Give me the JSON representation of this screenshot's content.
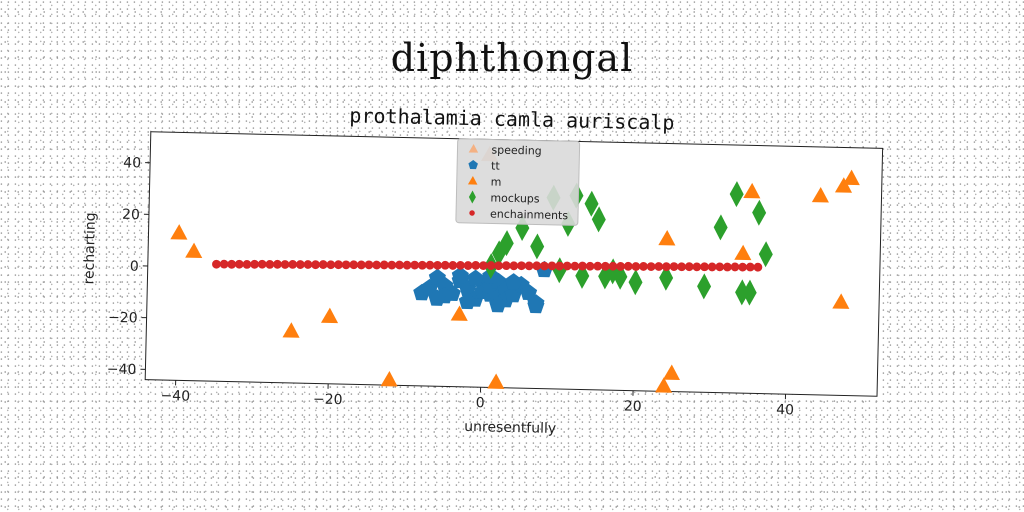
{
  "page_title": "diphthongal",
  "colors": {
    "speeding": "#f4b183",
    "tt": "#1f77b4",
    "m": "#ff7f0e",
    "mockups": "#2ca02c",
    "enchainments": "#d62728"
  },
  "chart_data": {
    "type": "scatter",
    "title": "prothalamia camla auriscalp",
    "xlabel": "unresentfully",
    "ylabel": "recharting",
    "xlim": [
      -44,
      52
    ],
    "ylim": [
      -44,
      52
    ],
    "xticks": [
      -40,
      -20,
      0,
      20,
      40
    ],
    "yticks": [
      -40,
      -20,
      0,
      20,
      40
    ],
    "grid": false,
    "legend_position": "upper-center",
    "series": [
      {
        "name": "speeding",
        "marker": "triangle",
        "points": [
          [
            0.5,
            46
          ]
        ]
      },
      {
        "name": "tt",
        "marker": "pentagon",
        "points": [
          [
            -8,
            -8
          ],
          [
            -7,
            -6
          ],
          [
            -6,
            -2
          ],
          [
            -5,
            -5
          ],
          [
            -4,
            -8
          ],
          [
            -3,
            -3
          ],
          [
            -2,
            -6
          ],
          [
            -1,
            -10
          ],
          [
            0,
            -4
          ],
          [
            0,
            -7
          ],
          [
            1,
            -8
          ],
          [
            1,
            -5
          ],
          [
            2,
            -9
          ],
          [
            2,
            -3
          ],
          [
            3,
            -6
          ],
          [
            3,
            -10
          ],
          [
            4,
            -8
          ],
          [
            5,
            -4
          ],
          [
            6,
            -7
          ],
          [
            -3,
            -1
          ],
          [
            -1,
            -2
          ],
          [
            1,
            -1
          ],
          [
            4,
            -3
          ],
          [
            7,
            -11
          ],
          [
            8,
            2
          ],
          [
            -5,
            -9
          ],
          [
            -2,
            -11
          ],
          [
            2,
            -12
          ],
          [
            7,
            -12
          ],
          [
            -6,
            -10
          ]
        ]
      },
      {
        "name": "m",
        "marker": "triangle",
        "points": [
          [
            -40,
            13
          ],
          [
            -38,
            6
          ],
          [
            -25,
            -24
          ],
          [
            -20,
            -18
          ],
          [
            -12,
            -42
          ],
          [
            -3,
            -16
          ],
          [
            2,
            -42
          ],
          [
            24,
            -42
          ],
          [
            25,
            -37
          ],
          [
            24,
            15
          ],
          [
            34,
            10
          ],
          [
            35,
            34
          ],
          [
            44,
            33
          ],
          [
            47,
            -8
          ],
          [
            47,
            37
          ],
          [
            48,
            40
          ]
        ]
      },
      {
        "name": "mockups",
        "marker": "diamond",
        "points": [
          [
            1,
            3
          ],
          [
            2,
            8
          ],
          [
            3,
            12
          ],
          [
            5,
            18
          ],
          [
            7,
            11
          ],
          [
            9,
            30
          ],
          [
            10,
            2
          ],
          [
            11,
            20
          ],
          [
            12,
            31
          ],
          [
            13,
            0
          ],
          [
            14,
            28
          ],
          [
            15,
            22
          ],
          [
            16,
            0
          ],
          [
            17,
            2
          ],
          [
            18,
            0
          ],
          [
            20,
            -2
          ],
          [
            24,
            0
          ],
          [
            29,
            -3
          ],
          [
            31,
            20
          ],
          [
            33,
            33
          ],
          [
            34,
            -5
          ],
          [
            35,
            -5
          ],
          [
            36,
            26
          ],
          [
            37,
            10
          ]
        ]
      },
      {
        "name": "enchainments",
        "marker": "circle",
        "points": [
          [
            -35,
            1.3
          ],
          [
            -34,
            1.4
          ],
          [
            -33,
            1.4
          ],
          [
            -32,
            1.5
          ],
          [
            -31,
            1.5
          ],
          [
            -30,
            1.6
          ],
          [
            -29,
            1.7
          ],
          [
            -28,
            1.7
          ],
          [
            -27,
            1.8
          ],
          [
            -26,
            1.8
          ],
          [
            -25,
            1.9
          ],
          [
            -24,
            1.9
          ],
          [
            -23,
            2.0
          ],
          [
            -22,
            2.0
          ],
          [
            -21,
            2.1
          ],
          [
            -20,
            2.1
          ],
          [
            -19,
            2.2
          ],
          [
            -18,
            2.2
          ],
          [
            -17,
            2.3
          ],
          [
            -16,
            2.3
          ],
          [
            -15,
            2.4
          ],
          [
            -14,
            2.4
          ],
          [
            -13,
            2.5
          ],
          [
            -12,
            2.5
          ],
          [
            -11,
            2.6
          ],
          [
            -10,
            2.6
          ],
          [
            -9,
            2.7
          ],
          [
            -8,
            2.7
          ],
          [
            -7,
            2.8
          ],
          [
            -6,
            2.8
          ],
          [
            -5,
            2.9
          ],
          [
            -4,
            2.9
          ],
          [
            -3,
            3.0
          ],
          [
            -2,
            3.0
          ],
          [
            -1,
            3.1
          ],
          [
            0,
            3.1
          ],
          [
            1,
            3.2
          ],
          [
            2,
            3.2
          ],
          [
            3,
            3.3
          ],
          [
            4,
            3.3
          ],
          [
            5,
            3.4
          ],
          [
            6,
            3.4
          ],
          [
            7,
            3.5
          ],
          [
            8,
            3.5
          ],
          [
            9,
            3.6
          ],
          [
            10,
            3.6
          ],
          [
            11,
            3.7
          ],
          [
            12,
            3.7
          ],
          [
            13,
            3.8
          ],
          [
            14,
            3.8
          ],
          [
            15,
            3.9
          ],
          [
            16,
            3.9
          ],
          [
            17,
            4.0
          ],
          [
            18,
            4.0
          ],
          [
            19,
            4.1
          ],
          [
            20,
            4.1
          ],
          [
            21,
            4.2
          ],
          [
            22,
            4.2
          ],
          [
            23,
            4.3
          ],
          [
            24,
            4.3
          ],
          [
            25,
            4.4
          ],
          [
            26,
            4.4
          ],
          [
            27,
            4.5
          ],
          [
            28,
            4.5
          ],
          [
            29,
            4.6
          ],
          [
            30,
            4.6
          ],
          [
            31,
            4.7
          ],
          [
            32,
            4.7
          ],
          [
            33,
            4.8
          ],
          [
            34,
            4.8
          ],
          [
            35,
            4.9
          ],
          [
            36,
            4.9
          ]
        ]
      }
    ]
  }
}
